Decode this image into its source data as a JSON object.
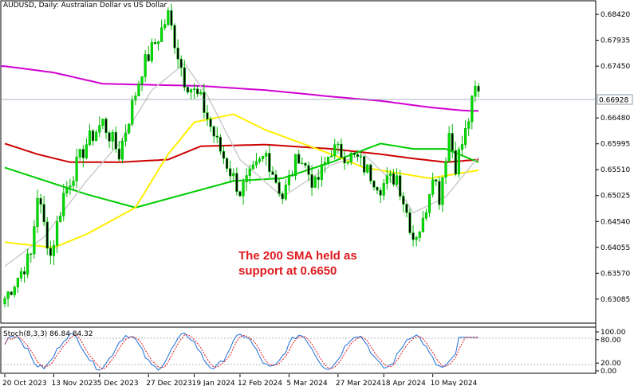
{
  "chart_data": {
    "type": "candlestick",
    "title": "AUDUSD, Daily:  Australian Dollar vs US Dollar",
    "current_price_label": "0.66928",
    "current_price": 0.66928,
    "y_ticks": [
      "0.68420",
      "0.67935",
      "0.67450",
      "0.66480",
      "0.65995",
      "0.65510",
      "0.65025",
      "0.64540",
      "0.64055",
      "0.63570",
      "0.63085"
    ],
    "ylim": [
      0.6265,
      0.6866
    ],
    "x_tick_labels": [
      "20 Oct 2023",
      "13 Nov 2023",
      "5 Dec 2023",
      "27 Dec 2023",
      "19 Jan 2024",
      "12 Feb 2024",
      "5 Mar 2024",
      "27 Mar 2024",
      "18 Apr 2024",
      "10 May 2024"
    ],
    "annotation": {
      "line1": "The 200 SMA held as",
      "line2": "support at 0.6650"
    },
    "series": [
      {
        "name": "",
        "color": "#d100d1",
        "anchors": [
          [
            0,
            0.6745
          ],
          [
            15,
            0.6733
          ],
          [
            30,
            0.6712
          ],
          [
            60,
            0.6708
          ],
          [
            80,
            0.67
          ],
          [
            100,
            0.6688
          ],
          [
            115,
            0.668
          ],
          [
            130,
            0.6668
          ],
          [
            140,
            0.6662
          ],
          [
            145,
            0.6661
          ]
        ]
      },
      {
        "name": "",
        "color": "#cc0000",
        "anchors": [
          [
            0,
            0.66
          ],
          [
            10,
            0.658
          ],
          [
            20,
            0.6565
          ],
          [
            35,
            0.6565
          ],
          [
            50,
            0.657
          ],
          [
            60,
            0.6595
          ],
          [
            80,
            0.6598
          ],
          [
            100,
            0.659
          ],
          [
            115,
            0.658
          ],
          [
            125,
            0.6572
          ],
          [
            135,
            0.6565
          ],
          [
            145,
            0.657
          ]
        ]
      },
      {
        "name": "",
        "color": "#00cc00",
        "anchors": [
          [
            0,
            0.6555
          ],
          [
            15,
            0.6525
          ],
          [
            25,
            0.6505
          ],
          [
            40,
            0.648
          ],
          [
            55,
            0.6505
          ],
          [
            70,
            0.653
          ],
          [
            85,
            0.6535
          ],
          [
            100,
            0.6565
          ],
          [
            115,
            0.66
          ],
          [
            125,
            0.659
          ],
          [
            135,
            0.659
          ],
          [
            145,
            0.6565
          ]
        ]
      },
      {
        "name": "",
        "color": "#ffee00",
        "anchors": [
          [
            0,
            0.6415
          ],
          [
            15,
            0.6405
          ],
          [
            25,
            0.643
          ],
          [
            40,
            0.648
          ],
          [
            50,
            0.658
          ],
          [
            58,
            0.664
          ],
          [
            70,
            0.6655
          ],
          [
            80,
            0.6625
          ],
          [
            100,
            0.658
          ],
          [
            110,
            0.6555
          ],
          [
            120,
            0.6545
          ],
          [
            130,
            0.6535
          ],
          [
            140,
            0.6545
          ],
          [
            145,
            0.655
          ]
        ]
      },
      {
        "name": "",
        "color": "#c8c8c8",
        "anchors": [
          [
            0,
            0.637
          ],
          [
            12,
            0.6425
          ],
          [
            25,
            0.653
          ],
          [
            35,
            0.66
          ],
          [
            45,
            0.67
          ],
          [
            55,
            0.675
          ],
          [
            62,
            0.669
          ],
          [
            72,
            0.657
          ],
          [
            85,
            0.65
          ],
          [
            100,
            0.656
          ],
          [
            110,
            0.658
          ],
          [
            120,
            0.652
          ],
          [
            125,
            0.647
          ],
          [
            135,
            0.65
          ],
          [
            145,
            0.6575
          ]
        ]
      }
    ],
    "price_path": [
      [
        0,
        0.631
      ],
      [
        8,
        0.639
      ],
      [
        10,
        0.6505
      ],
      [
        14,
        0.639
      ],
      [
        18,
        0.6505
      ],
      [
        25,
        0.66
      ],
      [
        30,
        0.664
      ],
      [
        35,
        0.658
      ],
      [
        42,
        0.674
      ],
      [
        47,
        0.68
      ],
      [
        50,
        0.684
      ],
      [
        55,
        0.672
      ],
      [
        60,
        0.668
      ],
      [
        65,
        0.66
      ],
      [
        72,
        0.651
      ],
      [
        80,
        0.658
      ],
      [
        85,
        0.65
      ],
      [
        90,
        0.658
      ],
      [
        95,
        0.652
      ],
      [
        100,
        0.659
      ],
      [
        108,
        0.657
      ],
      [
        115,
        0.652
      ],
      [
        120,
        0.654
      ],
      [
        125,
        0.6425
      ],
      [
        128,
        0.645
      ],
      [
        131,
        0.655
      ],
      [
        133,
        0.65
      ],
      [
        136,
        0.662
      ],
      [
        138,
        0.656
      ],
      [
        141,
        0.662
      ],
      [
        144,
        0.67
      ],
      [
        145,
        0.6693
      ]
    ],
    "stochastic": {
      "label": "Stoch(8,3,3) 86.84 84.32",
      "y_ticks": [
        "100.00",
        "80.00",
        "20.00",
        "0.00"
      ],
      "ylim": [
        0,
        100
      ]
    }
  }
}
